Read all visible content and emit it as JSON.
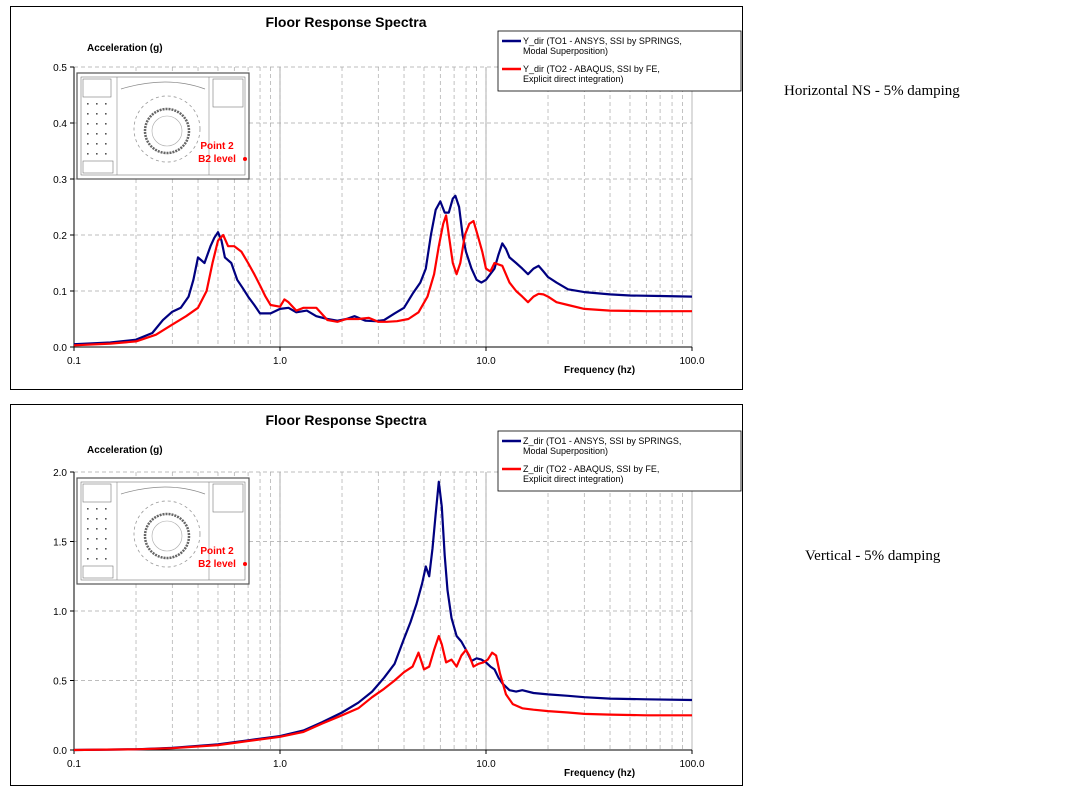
{
  "captions": [
    "Horizontal NS - 5% damping",
    "Vertical - 5% damping"
  ],
  "chart_data": [
    {
      "type": "line",
      "title": "Floor Response Spectra",
      "ylabel": "Acceleration (g)",
      "xlabel": "Frequency (hz)",
      "xscale": "log",
      "xlim": [
        0.1,
        100
      ],
      "ylim": [
        0,
        0.5
      ],
      "xticks": [
        0.1,
        1,
        10,
        100
      ],
      "xtick_labels": [
        "0.1",
        "1.0",
        "10.0",
        "100.0"
      ],
      "yticks": [
        0,
        0.1,
        0.2,
        0.3,
        0.4,
        0.5
      ],
      "ytick_labels": [
        "0.0",
        "0.1",
        "0.2",
        "0.3",
        "0.4",
        "0.5"
      ],
      "grid": true,
      "legend_position": "top-right",
      "inset": {
        "description_labels": [
          "Point 2",
          "B2 level"
        ]
      },
      "series": [
        {
          "name": "Y_dir (TO1 - ANSYS, SSI by SPRINGS, Modal Superposition)",
          "color": "#000080",
          "x": [
            0.1,
            0.15,
            0.2,
            0.24,
            0.27,
            0.3,
            0.33,
            0.36,
            0.38,
            0.4,
            0.43,
            0.46,
            0.48,
            0.5,
            0.52,
            0.54,
            0.58,
            0.62,
            0.66,
            0.7,
            0.75,
            0.8,
            0.9,
            1.0,
            1.1,
            1.2,
            1.35,
            1.5,
            1.7,
            1.9,
            2.1,
            2.3,
            2.6,
            2.9,
            3.2,
            3.6,
            4.0,
            4.4,
            4.8,
            5.1,
            5.4,
            5.7,
            6.0,
            6.3,
            6.6,
            6.9,
            7.1,
            7.4,
            7.7,
            8.0,
            8.5,
            9.0,
            9.5,
            10,
            11,
            11.5,
            12,
            12.5,
            13,
            14,
            15,
            16,
            17,
            18,
            19,
            20,
            22,
            25,
            30,
            40,
            50,
            70,
            100
          ],
          "values": [
            0.005,
            0.008,
            0.013,
            0.025,
            0.048,
            0.063,
            0.07,
            0.09,
            0.12,
            0.16,
            0.15,
            0.18,
            0.195,
            0.205,
            0.19,
            0.16,
            0.15,
            0.12,
            0.105,
            0.09,
            0.075,
            0.06,
            0.06,
            0.068,
            0.07,
            0.062,
            0.065,
            0.055,
            0.05,
            0.047,
            0.05,
            0.055,
            0.047,
            0.046,
            0.048,
            0.06,
            0.07,
            0.095,
            0.115,
            0.14,
            0.2,
            0.245,
            0.26,
            0.24,
            0.24,
            0.265,
            0.27,
            0.25,
            0.2,
            0.17,
            0.14,
            0.12,
            0.115,
            0.12,
            0.14,
            0.165,
            0.185,
            0.175,
            0.16,
            0.15,
            0.14,
            0.13,
            0.14,
            0.145,
            0.135,
            0.125,
            0.115,
            0.103,
            0.098,
            0.094,
            0.092,
            0.091,
            0.09
          ]
        },
        {
          "name": "Y_dir (TO2 - ABAQUS, SSI by FE, Explicit direct integration)",
          "color": "#FF0000",
          "x": [
            0.1,
            0.15,
            0.2,
            0.25,
            0.3,
            0.35,
            0.4,
            0.44,
            0.47,
            0.5,
            0.53,
            0.56,
            0.6,
            0.65,
            0.7,
            0.75,
            0.8,
            0.85,
            0.9,
            1.0,
            1.05,
            1.1,
            1.2,
            1.3,
            1.5,
            1.7,
            1.9,
            2.1,
            2.4,
            2.7,
            3.0,
            3.3,
            3.7,
            4.2,
            4.7,
            5.2,
            5.6,
            5.9,
            6.2,
            6.4,
            6.6,
            6.9,
            7.2,
            7.5,
            7.9,
            8.3,
            8.7,
            9.1,
            9.6,
            10,
            10.5,
            11,
            12,
            13,
            14,
            15,
            16,
            17,
            18,
            19,
            20,
            22,
            25,
            30,
            40,
            60,
            100
          ],
          "values": [
            0.003,
            0.006,
            0.01,
            0.022,
            0.04,
            0.055,
            0.07,
            0.1,
            0.15,
            0.19,
            0.2,
            0.18,
            0.18,
            0.17,
            0.15,
            0.13,
            0.11,
            0.09,
            0.075,
            0.072,
            0.085,
            0.08,
            0.065,
            0.07,
            0.07,
            0.048,
            0.045,
            0.05,
            0.05,
            0.052,
            0.045,
            0.045,
            0.046,
            0.05,
            0.062,
            0.09,
            0.13,
            0.18,
            0.22,
            0.235,
            0.2,
            0.15,
            0.13,
            0.15,
            0.2,
            0.22,
            0.225,
            0.2,
            0.17,
            0.14,
            0.135,
            0.15,
            0.145,
            0.115,
            0.1,
            0.09,
            0.08,
            0.09,
            0.095,
            0.094,
            0.09,
            0.08,
            0.075,
            0.068,
            0.065,
            0.064,
            0.064
          ]
        }
      ]
    },
    {
      "type": "line",
      "title": "Floor Response Spectra",
      "ylabel": "Acceleration (g)",
      "xlabel": "Frequency (hz)",
      "xscale": "log",
      "xlim": [
        0.1,
        100
      ],
      "ylim": [
        0,
        2.0
      ],
      "xticks": [
        0.1,
        1,
        10,
        100
      ],
      "xtick_labels": [
        "0.1",
        "1.0",
        "10.0",
        "100.0"
      ],
      "yticks": [
        0,
        0.5,
        1.0,
        1.5,
        2.0
      ],
      "ytick_labels": [
        "0.0",
        "0.5",
        "1.0",
        "1.5",
        "2.0"
      ],
      "grid": true,
      "legend_position": "top-right",
      "inset": {
        "description_labels": [
          "Point 2",
          "B2 level"
        ]
      },
      "series": [
        {
          "name": "Z_dir (TO1 - ANSYS, SSI by SPRINGS, Modal Superposition)",
          "color": "#000080",
          "x": [
            0.1,
            0.2,
            0.3,
            0.5,
            0.7,
            1.0,
            1.3,
            1.6,
            2.0,
            2.4,
            2.8,
            3.2,
            3.6,
            4.0,
            4.3,
            4.6,
            4.9,
            5.1,
            5.3,
            5.5,
            5.7,
            5.9,
            6.1,
            6.3,
            6.5,
            6.8,
            7.2,
            7.6,
            8.0,
            8.5,
            9.0,
            9.5,
            10,
            10.5,
            11,
            11.5,
            12,
            13,
            14,
            15,
            17,
            20,
            25,
            30,
            40,
            60,
            100
          ],
          "values": [
            0.0,
            0.005,
            0.015,
            0.04,
            0.07,
            0.1,
            0.14,
            0.2,
            0.27,
            0.34,
            0.42,
            0.52,
            0.62,
            0.8,
            0.92,
            1.05,
            1.2,
            1.32,
            1.25,
            1.45,
            1.7,
            1.93,
            1.75,
            1.4,
            1.15,
            0.95,
            0.82,
            0.78,
            0.72,
            0.64,
            0.66,
            0.65,
            0.63,
            0.6,
            0.58,
            0.52,
            0.48,
            0.43,
            0.42,
            0.43,
            0.41,
            0.4,
            0.39,
            0.38,
            0.37,
            0.365,
            0.36
          ]
        },
        {
          "name": "Z_dir (TO2 - ABAQUS, SSI by FE, Explicit direct integration)",
          "color": "#FF0000",
          "x": [
            0.1,
            0.2,
            0.3,
            0.5,
            0.7,
            1.0,
            1.3,
            1.6,
            2.0,
            2.4,
            2.8,
            3.2,
            3.6,
            4.0,
            4.4,
            4.7,
            5.0,
            5.3,
            5.6,
            5.9,
            6.1,
            6.4,
            6.8,
            7.2,
            7.6,
            8.0,
            8.3,
            8.7,
            9.2,
            9.7,
            10.2,
            10.7,
            11.2,
            11.7,
            12.5,
            13.5,
            15,
            17,
            20,
            25,
            30,
            40,
            60,
            100
          ],
          "values": [
            0.0,
            0.005,
            0.013,
            0.035,
            0.065,
            0.095,
            0.13,
            0.19,
            0.25,
            0.3,
            0.38,
            0.44,
            0.5,
            0.56,
            0.6,
            0.7,
            0.58,
            0.6,
            0.72,
            0.82,
            0.76,
            0.63,
            0.65,
            0.6,
            0.68,
            0.72,
            0.68,
            0.6,
            0.62,
            0.63,
            0.65,
            0.7,
            0.68,
            0.55,
            0.4,
            0.33,
            0.3,
            0.29,
            0.28,
            0.27,
            0.26,
            0.255,
            0.25,
            0.25
          ]
        }
      ]
    }
  ]
}
